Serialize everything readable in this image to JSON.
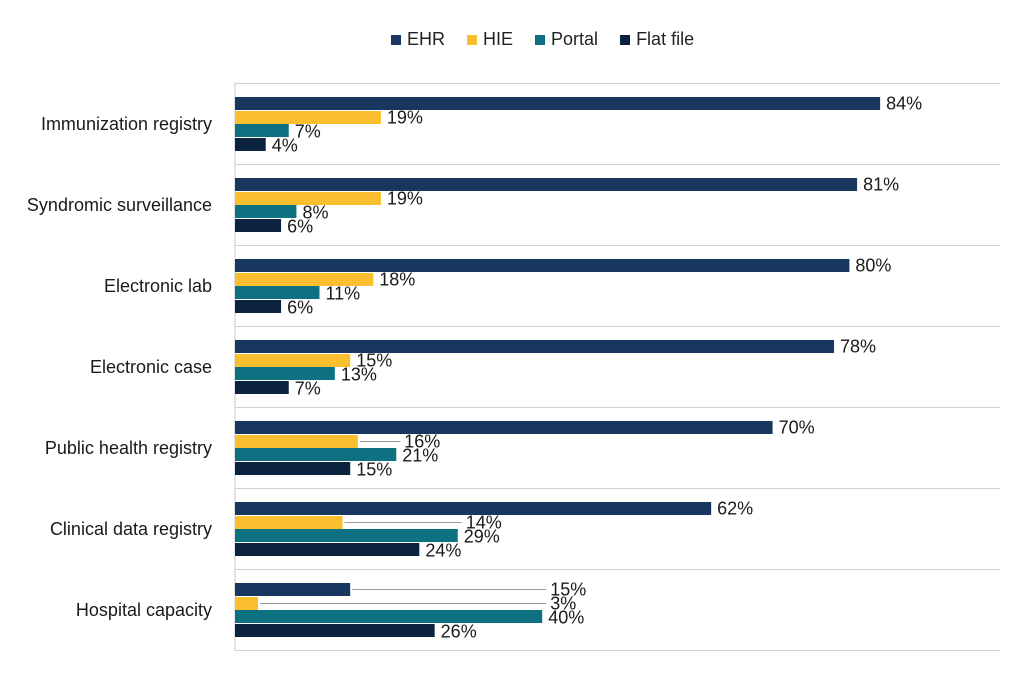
{
  "chart_data": {
    "type": "bar",
    "orientation": "horizontal",
    "title": "",
    "xlabel": "",
    "ylabel": "",
    "xlim": [
      0,
      100
    ],
    "value_suffix": "%",
    "categories": [
      "Immunization registry",
      "Syndromic surveillance",
      "Electronic lab",
      "Electronic case",
      "Public health registry",
      "Clinical data registry",
      "Hospital capacity"
    ],
    "series": [
      {
        "name": "EHR",
        "color": "#17375e",
        "values": [
          84,
          81,
          80,
          78,
          70,
          62,
          15
        ]
      },
      {
        "name": "HIE",
        "color": "#f9bf2e",
        "values": [
          19,
          19,
          18,
          15,
          16,
          14,
          3
        ]
      },
      {
        "name": "Portal",
        "color": "#0d7181",
        "values": [
          7,
          8,
          11,
          13,
          21,
          29,
          40
        ]
      },
      {
        "name": "Flat file",
        "color": "#0c2340",
        "values": [
          4,
          6,
          6,
          7,
          15,
          24,
          26
        ]
      }
    ],
    "legend_position": "top",
    "grid": false
  }
}
